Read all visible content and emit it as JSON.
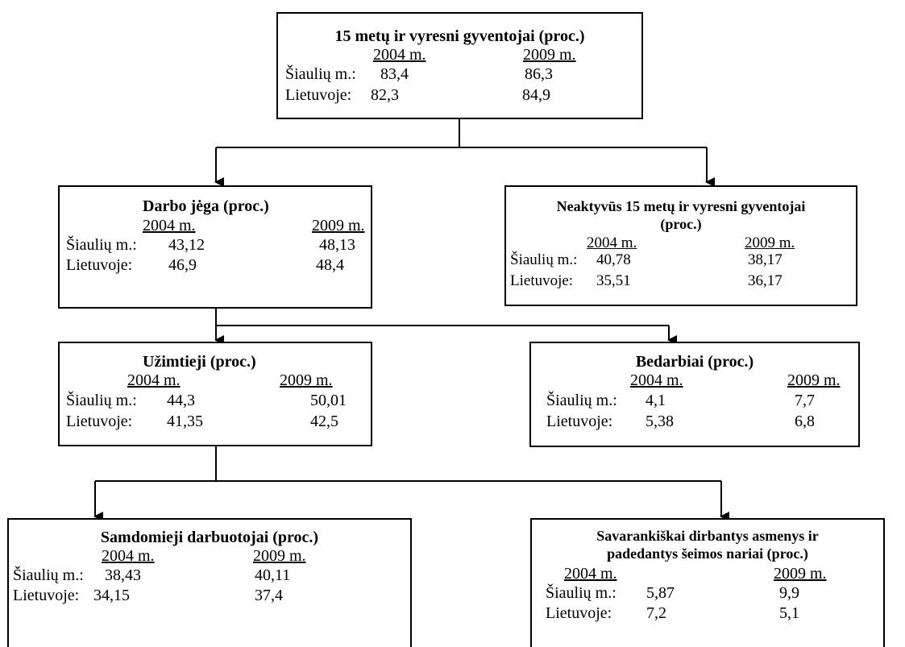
{
  "boxes": {
    "population": {
      "title": "15 metų ir vyresni gyventojai (proc.)",
      "year1": "2004 m.",
      "year2": "2009 m.",
      "rows": [
        {
          "label": "Šiaulių m.:",
          "v1": "83,4",
          "v2": "86,3"
        },
        {
          "label": "Lietuvoje:",
          "v1": "82,3",
          "v2": "84,9"
        }
      ]
    },
    "labour_force": {
      "title": "Darbo jėga (proc.)",
      "year1": "2004 m.",
      "year2": "2009 m.",
      "rows": [
        {
          "label": "Šiaulių m.:",
          "v1": "43,12",
          "v2": "48,13"
        },
        {
          "label": "Lietuvoje:",
          "v1": "46,9",
          "v2": "48,4"
        }
      ]
    },
    "inactive": {
      "title_line1": "Neaktyvūs 15 metų ir vyresni gyventojai",
      "title_line2": "(proc.)",
      "year1": "2004 m.",
      "year2": "2009 m.",
      "rows": [
        {
          "label": "Šiaulių m.:",
          "v1": "40,78",
          "v2": "38,17"
        },
        {
          "label": "Lietuvoje:",
          "v1": "35,51",
          "v2": "36,17"
        }
      ]
    },
    "employed": {
      "title": "Užimtieji (proc.)",
      "year1": "2004 m.",
      "year2": "2009 m.",
      "rows": [
        {
          "label": "Šiaulių m.:",
          "v1": "44,3",
          "v2": "50,01"
        },
        {
          "label": "Lietuvoje:",
          "v1": "41,35",
          "v2": "42,5"
        }
      ]
    },
    "unemployed": {
      "title": "Bedarbiai (proc.)",
      "year1": "2004 m.",
      "year2": "2009 m.",
      "rows": [
        {
          "label": "Šiaulių m.:",
          "v1": "4,1",
          "v2": "7,7"
        },
        {
          "label": "Lietuvoje:",
          "v1": "5,38",
          "v2": "6,8"
        }
      ]
    },
    "employees": {
      "title": "Samdomieji darbuotojai (proc.)",
      "year1": "2004 m.",
      "year2": "2009 m.",
      "rows": [
        {
          "label": "Šiaulių m.:",
          "v1": "38,43",
          "v2": "40,11"
        },
        {
          "label": "Lietuvoje:",
          "v1": "34,15",
          "v2": "37,4"
        }
      ]
    },
    "self_employed": {
      "title_line1": "Savarankiškai dirbantys asmenys ir",
      "title_line2": "padedantys šeimos nariai (proc.)",
      "year1": "2004 m.",
      "year2": "2009 m.",
      "rows": [
        {
          "label": "Šiaulių m.:",
          "v1": "5,87",
          "v2": "9,9"
        },
        {
          "label": "Lietuvoje:",
          "v1": "7,2",
          "v2": "5,1"
        }
      ]
    }
  }
}
